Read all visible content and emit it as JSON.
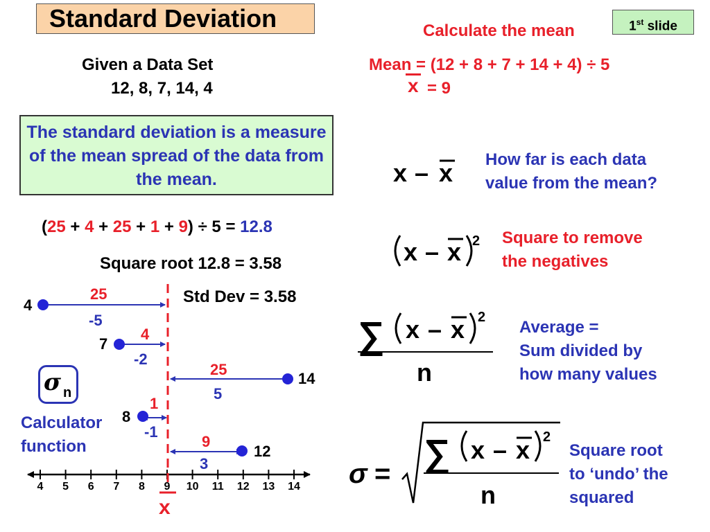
{
  "title": "Standard Deviation",
  "slide_tag": {
    "main": "1",
    "sup": "st",
    "rest": " slide"
  },
  "given": {
    "label": "Given a Data Set",
    "values": "12, 8, 7, 14, 4"
  },
  "mean_section": {
    "heading": "Calculate the mean",
    "formula": "Mean = (12 + 8 + 7 + 14 + 4) ÷ 5",
    "xbar": "x",
    "result": "= 9"
  },
  "definition": "The standard deviation is a measure of the mean spread of the data from the mean.",
  "sum_calc": {
    "open": "(",
    "terms": [
      "25",
      "4",
      "25",
      "1",
      "9"
    ],
    "plus": " + ",
    "close": ") ÷ 5 = ",
    "result": "12.8"
  },
  "sqrt_line": "Square root 12.8 = 3.58",
  "std_dev_line": "Std Dev = 3.58",
  "sigma_n": {
    "sigma": "σ",
    "sub": "n"
  },
  "calculator": {
    "line1": "Calculator",
    "line2": "function"
  },
  "number_line": {
    "ticks": [
      "4",
      "5",
      "6",
      "7",
      "8",
      "9",
      "10",
      "11",
      "12",
      "13",
      "14"
    ],
    "mean_label": "x"
  },
  "points": [
    {
      "value": "4",
      "sq": "25",
      "dev": "-5"
    },
    {
      "value": "7",
      "sq": "4",
      "dev": "-2"
    },
    {
      "value": "14",
      "sq": "25",
      "dev": "5"
    },
    {
      "value": "8",
      "sq": "1",
      "dev": "-1"
    },
    {
      "value": "12",
      "sq": "9",
      "dev": "3"
    }
  ],
  "explanations": {
    "diff": {
      "line1": "How far is each data",
      "line2": "value from the mean?"
    },
    "square": {
      "line1": "Square to remove",
      "line2": "the negatives"
    },
    "average": {
      "line1": "Average =",
      "line2": "Sum divided by",
      "line3": "how many values"
    },
    "root": {
      "line1": "Square root",
      "line2": "to ‘undo’ the",
      "line3": "squared"
    }
  },
  "formula_symbols": {
    "x": "x",
    "minus": "–",
    "xbar": "x",
    "exp": "2",
    "sum": "∑",
    "n": "n",
    "sigma": "σ",
    "eq": "="
  },
  "colors": {
    "red": "#e8202a",
    "blue": "#2b34b4",
    "title_bg": "#fbd3a8",
    "tag_bg": "#c5f2bf",
    "def_bg": "#d9fbd2"
  }
}
